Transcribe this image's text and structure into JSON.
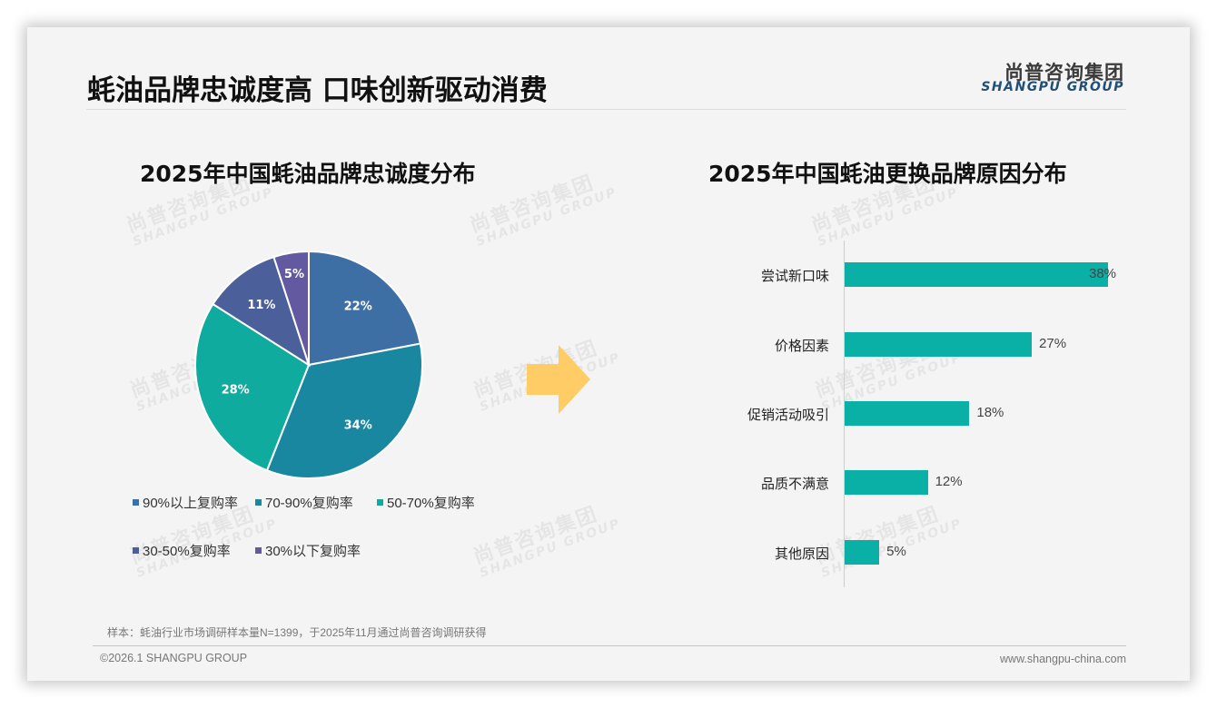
{
  "header": {
    "title": "蚝油品牌忠诚度高 口味创新驱动消费",
    "logo_cn": "尚普咨询集团",
    "logo_en": "SHANGPU GROUP"
  },
  "watermark": {
    "cn": "尚普咨询集团",
    "en": "SHANGPU GROUP"
  },
  "chart_data": [
    {
      "type": "pie",
      "title": "2025年中国蚝油品牌忠诚度分布",
      "categories": [
        "90%以上复购率",
        "70-90%复购率",
        "50-70%复购率",
        "30-50%复购率",
        "30%以下复购率"
      ],
      "values": [
        22,
        34,
        28,
        11,
        5
      ],
      "labels": [
        "22%",
        "34%",
        "28%",
        "11%",
        "5%"
      ],
      "colors": [
        "#3e6fa4",
        "#1a87a0",
        "#10ab9f",
        "#4b5f9b",
        "#6359a0"
      ],
      "start_angle": "12 o'clock, clockwise",
      "legend_position": "bottom"
    },
    {
      "type": "bar",
      "orientation": "horizontal",
      "title": "2025年中国蚝油更换品牌原因分布",
      "categories": [
        "尝试新口味",
        "价格因素",
        "促销活动吸引",
        "品质不满意",
        "其他原因"
      ],
      "values": [
        38,
        27,
        18,
        12,
        5
      ],
      "labels": [
        "38%",
        "27%",
        "18%",
        "12%",
        "5%"
      ],
      "color": "#0aafa6",
      "xlabel": "",
      "ylabel": "",
      "grid": false
    }
  ],
  "arrow": {
    "color": "#ffcc66",
    "icon": "right-arrow-icon"
  },
  "footer": {
    "note": "样本：蚝油行业市场调研样本量N=1399，于2025年11月通过尚普咨询调研获得",
    "copyright": "©2026.1 SHANGPU GROUP",
    "website": "www.shangpu-china.com"
  }
}
